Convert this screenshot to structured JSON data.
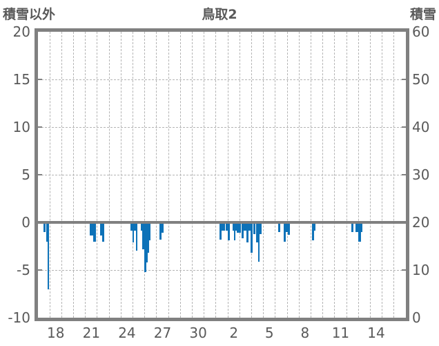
{
  "colors": {
    "bar": "#0d72b8",
    "axis": "#808080",
    "grid": "#b3b3b3",
    "text": "#595959",
    "background": "#ffffff"
  },
  "chart_data": {
    "type": "bar",
    "title": "鳥取2",
    "left_axis": {
      "label": "積雪以外",
      "min": -10,
      "max": 20,
      "ticks": [
        20,
        15,
        10,
        5,
        0,
        -5,
        -10
      ]
    },
    "right_axis": {
      "label": "積雪",
      "min": 0,
      "max": 60,
      "ticks": [
        60,
        50,
        40,
        30,
        20,
        10,
        0
      ]
    },
    "x_axis": {
      "n_days": 31,
      "label_day_indices": [
        1,
        4,
        7,
        10,
        13,
        16,
        19,
        22,
        25,
        28
      ],
      "labels": [
        "18",
        "21",
        "24",
        "27",
        "30",
        "2",
        "5",
        "8",
        "11",
        "14"
      ],
      "grid": "one dashed vertical line per day boundary"
    },
    "grid_on": true,
    "bars_format": [
      "day_offset_from_axis_start",
      "width_days",
      "value_on_left_axis"
    ],
    "bars": [
      [
        0.47,
        0.17,
        -1.0
      ],
      [
        0.69,
        0.13,
        -2.0
      ],
      [
        0.81,
        0.14,
        -7.0
      ],
      [
        4.36,
        0.29,
        -1.4
      ],
      [
        4.65,
        0.23,
        -2.0
      ],
      [
        5.23,
        0.17,
        -1.4
      ],
      [
        5.41,
        0.17,
        -2.0
      ],
      [
        7.79,
        0.17,
        -0.9
      ],
      [
        7.97,
        0.12,
        -2.1
      ],
      [
        8.09,
        0.17,
        -0.9
      ],
      [
        8.26,
        0.12,
        -3.0
      ],
      [
        8.67,
        0.12,
        -0.9
      ],
      [
        8.78,
        0.17,
        -2.8
      ],
      [
        8.96,
        0.15,
        -5.2
      ],
      [
        9.11,
        0.15,
        -4.2
      ],
      [
        9.25,
        0.12,
        -3.2
      ],
      [
        9.37,
        0.12,
        -1.9
      ],
      [
        10.24,
        0.17,
        -1.8
      ],
      [
        10.41,
        0.15,
        -1.1
      ],
      [
        15.3,
        0.17,
        -1.8
      ],
      [
        15.47,
        0.29,
        -0.9
      ],
      [
        15.82,
        0.17,
        -0.9
      ],
      [
        16.0,
        0.17,
        -1.9
      ],
      [
        16.4,
        0.09,
        -0.9
      ],
      [
        16.49,
        0.12,
        -1.9
      ],
      [
        16.61,
        0.07,
        -0.9
      ],
      [
        16.75,
        0.17,
        -1.1
      ],
      [
        16.92,
        0.17,
        -1.1
      ],
      [
        17.16,
        0.17,
        -1.7
      ],
      [
        17.33,
        0.12,
        -0.9
      ],
      [
        17.45,
        0.12,
        -0.9
      ],
      [
        17.57,
        0.17,
        -2.1
      ],
      [
        17.74,
        0.17,
        -0.9
      ],
      [
        17.92,
        0.17,
        -3.2
      ],
      [
        18.15,
        0.17,
        -1.2
      ],
      [
        18.38,
        0.17,
        -2.1
      ],
      [
        18.55,
        0.12,
        -4.1
      ],
      [
        18.67,
        0.17,
        -1.2
      ],
      [
        20.24,
        0.15,
        -1.0
      ],
      [
        20.71,
        0.17,
        -2.0
      ],
      [
        20.88,
        0.15,
        -1.0
      ],
      [
        21.06,
        0.17,
        -1.3
      ],
      [
        23.09,
        0.17,
        -1.9
      ],
      [
        23.27,
        0.12,
        -0.9
      ],
      [
        26.41,
        0.17,
        -1.0
      ],
      [
        26.76,
        0.23,
        -1.0
      ],
      [
        26.99,
        0.23,
        -2.0
      ],
      [
        27.22,
        0.12,
        -1.0
      ]
    ]
  }
}
